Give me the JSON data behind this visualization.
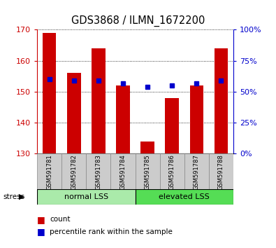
{
  "title": "GDS3868 / ILMN_1672200",
  "samples": [
    "GSM591781",
    "GSM591782",
    "GSM591783",
    "GSM591784",
    "GSM591785",
    "GSM591786",
    "GSM591787",
    "GSM591788"
  ],
  "bar_values": [
    169,
    156,
    164,
    152,
    134,
    148,
    152,
    164
  ],
  "bar_bottom": 130,
  "percentile_values": [
    60,
    59,
    59,
    57,
    54,
    55,
    57,
    59
  ],
  "ylim_left": [
    130,
    170
  ],
  "ylim_right": [
    0,
    100
  ],
  "yticks_left": [
    130,
    140,
    150,
    160,
    170
  ],
  "yticks_right": [
    0,
    25,
    50,
    75,
    100
  ],
  "bar_color": "#cc0000",
  "percentile_color": "#0000cc",
  "group_labels": [
    "normal LSS",
    "elevated LSS"
  ],
  "group_ranges": [
    [
      0,
      4
    ],
    [
      4,
      8
    ]
  ],
  "group_colors_light": "#aaeaaa",
  "group_colors_dark": "#55dd55",
  "stress_label": "stress",
  "legend_items": [
    "count",
    "percentile rank within the sample"
  ],
  "tick_color_left": "#cc0000",
  "tick_color_right": "#0000cc",
  "bar_width": 0.55,
  "sample_box_color": "#cccccc",
  "sample_box_edge": "#888888"
}
